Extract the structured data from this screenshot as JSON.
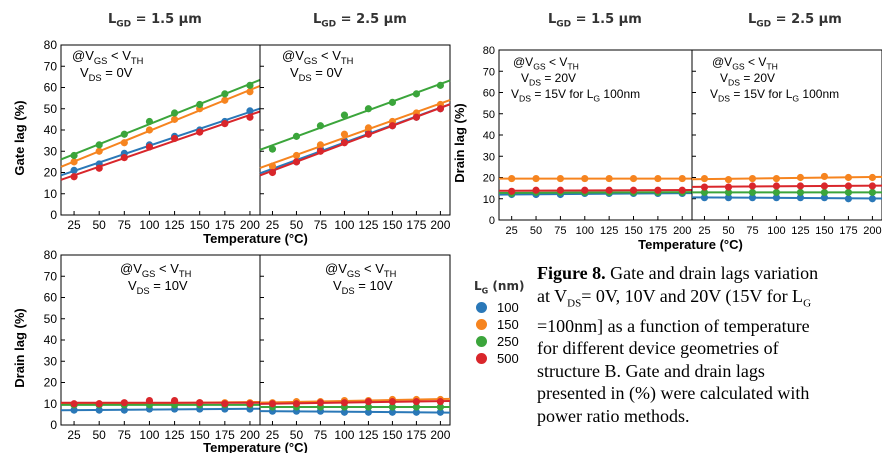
{
  "headers": {
    "h1": {
      "main": "L",
      "sub": "GD",
      "rest": " = 1.5 µm"
    },
    "h2": {
      "main": "L",
      "sub": "GD",
      "rest": " = 2.5 µm"
    },
    "h3": {
      "main": "L",
      "sub": "GD",
      "rest": " = 1.5 µm"
    },
    "h4": {
      "main": "L",
      "sub": "GD",
      "rest": " = 2.5 µm"
    }
  },
  "legend": {
    "title_main": "L",
    "title_sub": "G",
    "title_unit": " (nm)",
    "items": [
      {
        "label": "100",
        "color": "#2a78b8"
      },
      {
        "label": "150",
        "color": "#f6841f"
      },
      {
        "label": "250",
        "color": "#3ba53b"
      },
      {
        "label": "500",
        "color": "#d9262b"
      }
    ]
  },
  "caption": {
    "label": "Figure 8.",
    "lines": [
      " Gate and drain lags variation",
      "at V<sub>DS</sub>= 0V, 10V and 20V (15V for L<sub>G</sub>",
      "=100nm] as a function of temperature",
      "for different device geometries of",
      "structure B. Gate and drain lags",
      "presented in (%) were calculated with",
      "power ratio methods."
    ]
  },
  "chart_data": [
    {
      "id": "gate_lag",
      "type": "scatter",
      "ylabel": "Gate lag (%)",
      "xlabel": "Temperature (°C)",
      "ylim": [
        0,
        80
      ],
      "yticks": [
        0,
        10,
        20,
        30,
        40,
        50,
        60,
        70,
        80
      ],
      "xticks": [
        25,
        50,
        75,
        100,
        125,
        150,
        175,
        200
      ],
      "panels": [
        {
          "label_lines": [
            "@V_{GS} < V_{TH}",
            "V_{DS} =  0V"
          ],
          "series": [
            {
              "name": "100",
              "x": [
                25,
                50,
                75,
                100,
                125,
                150,
                175,
                200
              ],
              "values": [
                21,
                24,
                29,
                33,
                37,
                40,
                44,
                49
              ]
            },
            {
              "name": "150",
              "x": [
                25,
                50,
                75,
                100,
                125,
                150,
                175,
                200
              ],
              "values": [
                25,
                30,
                34,
                40,
                45,
                50,
                54,
                58
              ]
            },
            {
              "name": "250",
              "x": [
                25,
                50,
                75,
                100,
                125,
                150,
                175,
                200
              ],
              "values": [
                28,
                33,
                38,
                44,
                48,
                52,
                57,
                61
              ]
            },
            {
              "name": "500",
              "x": [
                25,
                50,
                75,
                100,
                125,
                150,
                175,
                200
              ],
              "values": [
                18,
                22,
                27,
                32,
                36,
                39,
                43,
                46
              ]
            }
          ]
        },
        {
          "label_lines": [
            "@V_{GS} < V_{TH}",
            "V_{DS} =   0V"
          ],
          "series": [
            {
              "name": "100",
              "x": [
                25,
                50,
                75,
                100,
                125,
                150,
                175,
                200
              ],
              "values": [
                21,
                25,
                31,
                35,
                39,
                42,
                46,
                50
              ]
            },
            {
              "name": "150",
              "x": [
                25,
                50,
                75,
                100,
                125,
                150,
                175,
                200
              ],
              "values": [
                23,
                28,
                33,
                38,
                41,
                44,
                48,
                52
              ]
            },
            {
              "name": "250",
              "x": [
                25,
                50,
                75,
                100,
                125,
                150,
                175,
                200
              ],
              "values": [
                31,
                37,
                42,
                47,
                50,
                53,
                57,
                61
              ]
            },
            {
              "name": "500",
              "x": [
                25,
                50,
                75,
                100,
                125,
                150,
                175,
                200
              ],
              "values": [
                20,
                25,
                30,
                34,
                38,
                42,
                46,
                50
              ]
            }
          ]
        }
      ]
    },
    {
      "id": "drain_lag_10V",
      "type": "scatter",
      "ylabel": "Drain lag (%)",
      "xlabel": "Temperature (°C)",
      "ylim": [
        0,
        80
      ],
      "yticks": [
        0,
        10,
        20,
        30,
        40,
        50,
        60,
        70,
        80
      ],
      "xticks": [
        25,
        50,
        75,
        100,
        125,
        150,
        175,
        200
      ],
      "panels": [
        {
          "label_lines": [
            "@V_{GS} < V_{TH}",
            "V_{DS} = 10V"
          ],
          "series": [
            {
              "name": "100",
              "x": [
                25,
                50,
                75,
                100,
                125,
                150,
                175,
                200
              ],
              "values": [
                7,
                7,
                7,
                7.5,
                7.5,
                7.5,
                7.5,
                7.5
              ]
            },
            {
              "name": "150",
              "x": [
                25,
                50,
                75,
                100,
                125,
                150,
                175,
                200
              ],
              "values": [
                9.5,
                10,
                10,
                10.5,
                11,
                10.5,
                10.5,
                10.5
              ]
            },
            {
              "name": "250",
              "x": [
                25,
                50,
                75,
                100,
                125,
                150,
                175,
                200
              ],
              "values": [
                9.5,
                9.5,
                9.5,
                9.5,
                9.5,
                9.5,
                9.5,
                9.5
              ]
            },
            {
              "name": "500",
              "x": [
                25,
                50,
                75,
                100,
                125,
                150,
                175,
                200
              ],
              "values": [
                10,
                10,
                10.5,
                11.5,
                11.5,
                10.5,
                10,
                10
              ]
            }
          ]
        },
        {
          "label_lines": [
            "@V_{GS} < V_{TH}",
            "V_{DS} = 10V"
          ],
          "series": [
            {
              "name": "100",
              "x": [
                25,
                50,
                75,
                100,
                125,
                150,
                175,
                200
              ],
              "values": [
                6.5,
                6.5,
                6.5,
                6,
                6,
                6,
                6,
                6
              ]
            },
            {
              "name": "150",
              "x": [
                25,
                50,
                75,
                100,
                125,
                150,
                175,
                200
              ],
              "values": [
                10.5,
                11,
                11,
                11.5,
                11.5,
                12,
                12,
                12
              ]
            },
            {
              "name": "250",
              "x": [
                25,
                50,
                75,
                100,
                125,
                150,
                175,
                200
              ],
              "values": [
                8.5,
                8.5,
                8.5,
                8.5,
                8.5,
                8.5,
                8.5,
                8.5
              ]
            },
            {
              "name": "500",
              "x": [
                25,
                50,
                75,
                100,
                125,
                150,
                175,
                200
              ],
              "values": [
                10,
                10,
                10.5,
                10.5,
                11,
                11,
                11,
                11
              ]
            }
          ]
        }
      ]
    },
    {
      "id": "drain_lag_20V",
      "type": "scatter",
      "ylabel": "Drain lag (%)",
      "xlabel": "Temperature (°C)",
      "ylim": [
        0,
        80
      ],
      "yticks": [
        0,
        10,
        20,
        30,
        40,
        50,
        60,
        70,
        80
      ],
      "xticks": [
        25,
        50,
        75,
        100,
        125,
        150,
        175,
        200
      ],
      "panels": [
        {
          "label_lines": [
            "@V_{GS} < V_{TH}",
            "V_{DS} = 20V",
            "V_{DS} = 15V for L_{G} 100nm"
          ],
          "series": [
            {
              "name": "100",
              "x": [
                25,
                50,
                75,
                100,
                125,
                150,
                175,
                200
              ],
              "values": [
                12,
                12,
                12,
                12.5,
                12.5,
                12.5,
                12.5,
                12.5
              ]
            },
            {
              "name": "150",
              "x": [
                25,
                50,
                75,
                100,
                125,
                150,
                175,
                200
              ],
              "values": [
                19.5,
                19.5,
                19.5,
                19.5,
                19.5,
                19.5,
                19.5,
                19.5
              ]
            },
            {
              "name": "250",
              "x": [
                25,
                50,
                75,
                100,
                125,
                150,
                175,
                200
              ],
              "values": [
                12.5,
                13,
                13,
                13,
                13,
                13,
                13,
                13
              ]
            },
            {
              "name": "500",
              "x": [
                25,
                50,
                75,
                100,
                125,
                150,
                175,
                200
              ],
              "values": [
                13.5,
                14,
                14,
                14,
                14,
                14,
                14,
                14
              ]
            }
          ]
        },
        {
          "label_lines": [
            "@V_{GS} < V_{TH}",
            "V_{DS} = 20V",
            "V_{DS} = 15V for L_{G} 100nm"
          ],
          "series": [
            {
              "name": "100",
              "x": [
                25,
                50,
                75,
                100,
                125,
                150,
                175,
                200
              ],
              "values": [
                10.5,
                10.5,
                10.5,
                10.5,
                10.5,
                10.5,
                10,
                10
              ]
            },
            {
              "name": "150",
              "x": [
                25,
                50,
                75,
                100,
                125,
                150,
                175,
                200
              ],
              "values": [
                19.5,
                19,
                19.5,
                19.5,
                20,
                20.5,
                20,
                20
              ]
            },
            {
              "name": "250",
              "x": [
                25,
                50,
                75,
                100,
                125,
                150,
                175,
                200
              ],
              "values": [
                13,
                13,
                13,
                13,
                13,
                13,
                13,
                13
              ]
            },
            {
              "name": "500",
              "x": [
                25,
                50,
                75,
                100,
                125,
                150,
                175,
                200
              ],
              "values": [
                15.5,
                15.5,
                16,
                16,
                16,
                16,
                16,
                16
              ]
            }
          ]
        }
      ]
    }
  ]
}
